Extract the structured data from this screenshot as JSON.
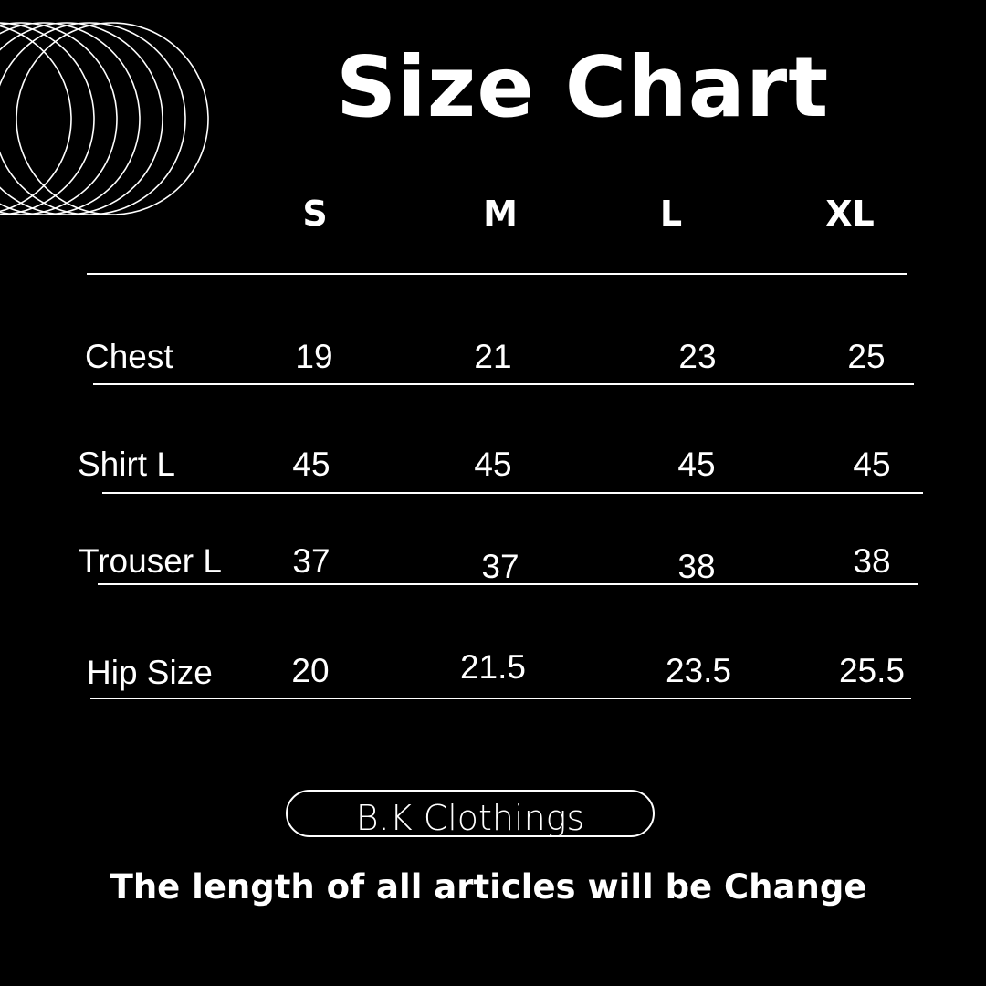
{
  "title": "Size Chart",
  "sizes": [
    "S",
    "M",
    "L",
    "XL"
  ],
  "rows": [
    {
      "label": "Chest",
      "values": [
        "19",
        "21",
        "23",
        "25"
      ]
    },
    {
      "label": "Shirt L",
      "values": [
        "45",
        "45",
        "45",
        "45"
      ]
    },
    {
      "label": "Trouser L",
      "values": [
        "37",
        "37",
        "38",
        "38"
      ]
    },
    {
      "label": "Hip Size",
      "values": [
        "20",
        "21.5",
        "23.5",
        "25.5"
      ]
    }
  ],
  "brand": "B.K Clothings",
  "note": "The length of all articles will be Change",
  "icons": {
    "decoration": "overlapping-circles"
  },
  "colors": {
    "background": "#000000",
    "foreground": "#ffffff"
  }
}
